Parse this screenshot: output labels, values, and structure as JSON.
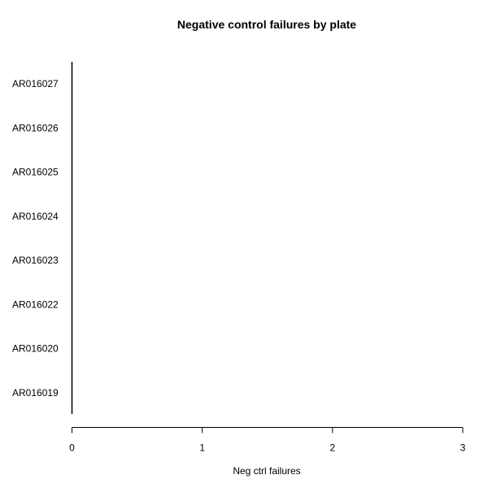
{
  "chart_data": {
    "type": "bar",
    "orientation": "horizontal",
    "title": "Negative control failures by plate",
    "xlabel": "Neg ctrl failures",
    "ylabel": "",
    "categories": [
      "AR016019",
      "AR016020",
      "AR016022",
      "AR016023",
      "AR016024",
      "AR016025",
      "AR016026",
      "AR016027"
    ],
    "values": [
      0,
      0,
      0,
      0,
      0,
      0,
      0,
      0
    ],
    "xlim": [
      0,
      3
    ],
    "xticks": [
      "0",
      "1",
      "2",
      "3"
    ],
    "grid": false,
    "legend": "none",
    "colors": {
      "axis": "#000000",
      "text": "#000000",
      "background": "#ffffff"
    }
  }
}
